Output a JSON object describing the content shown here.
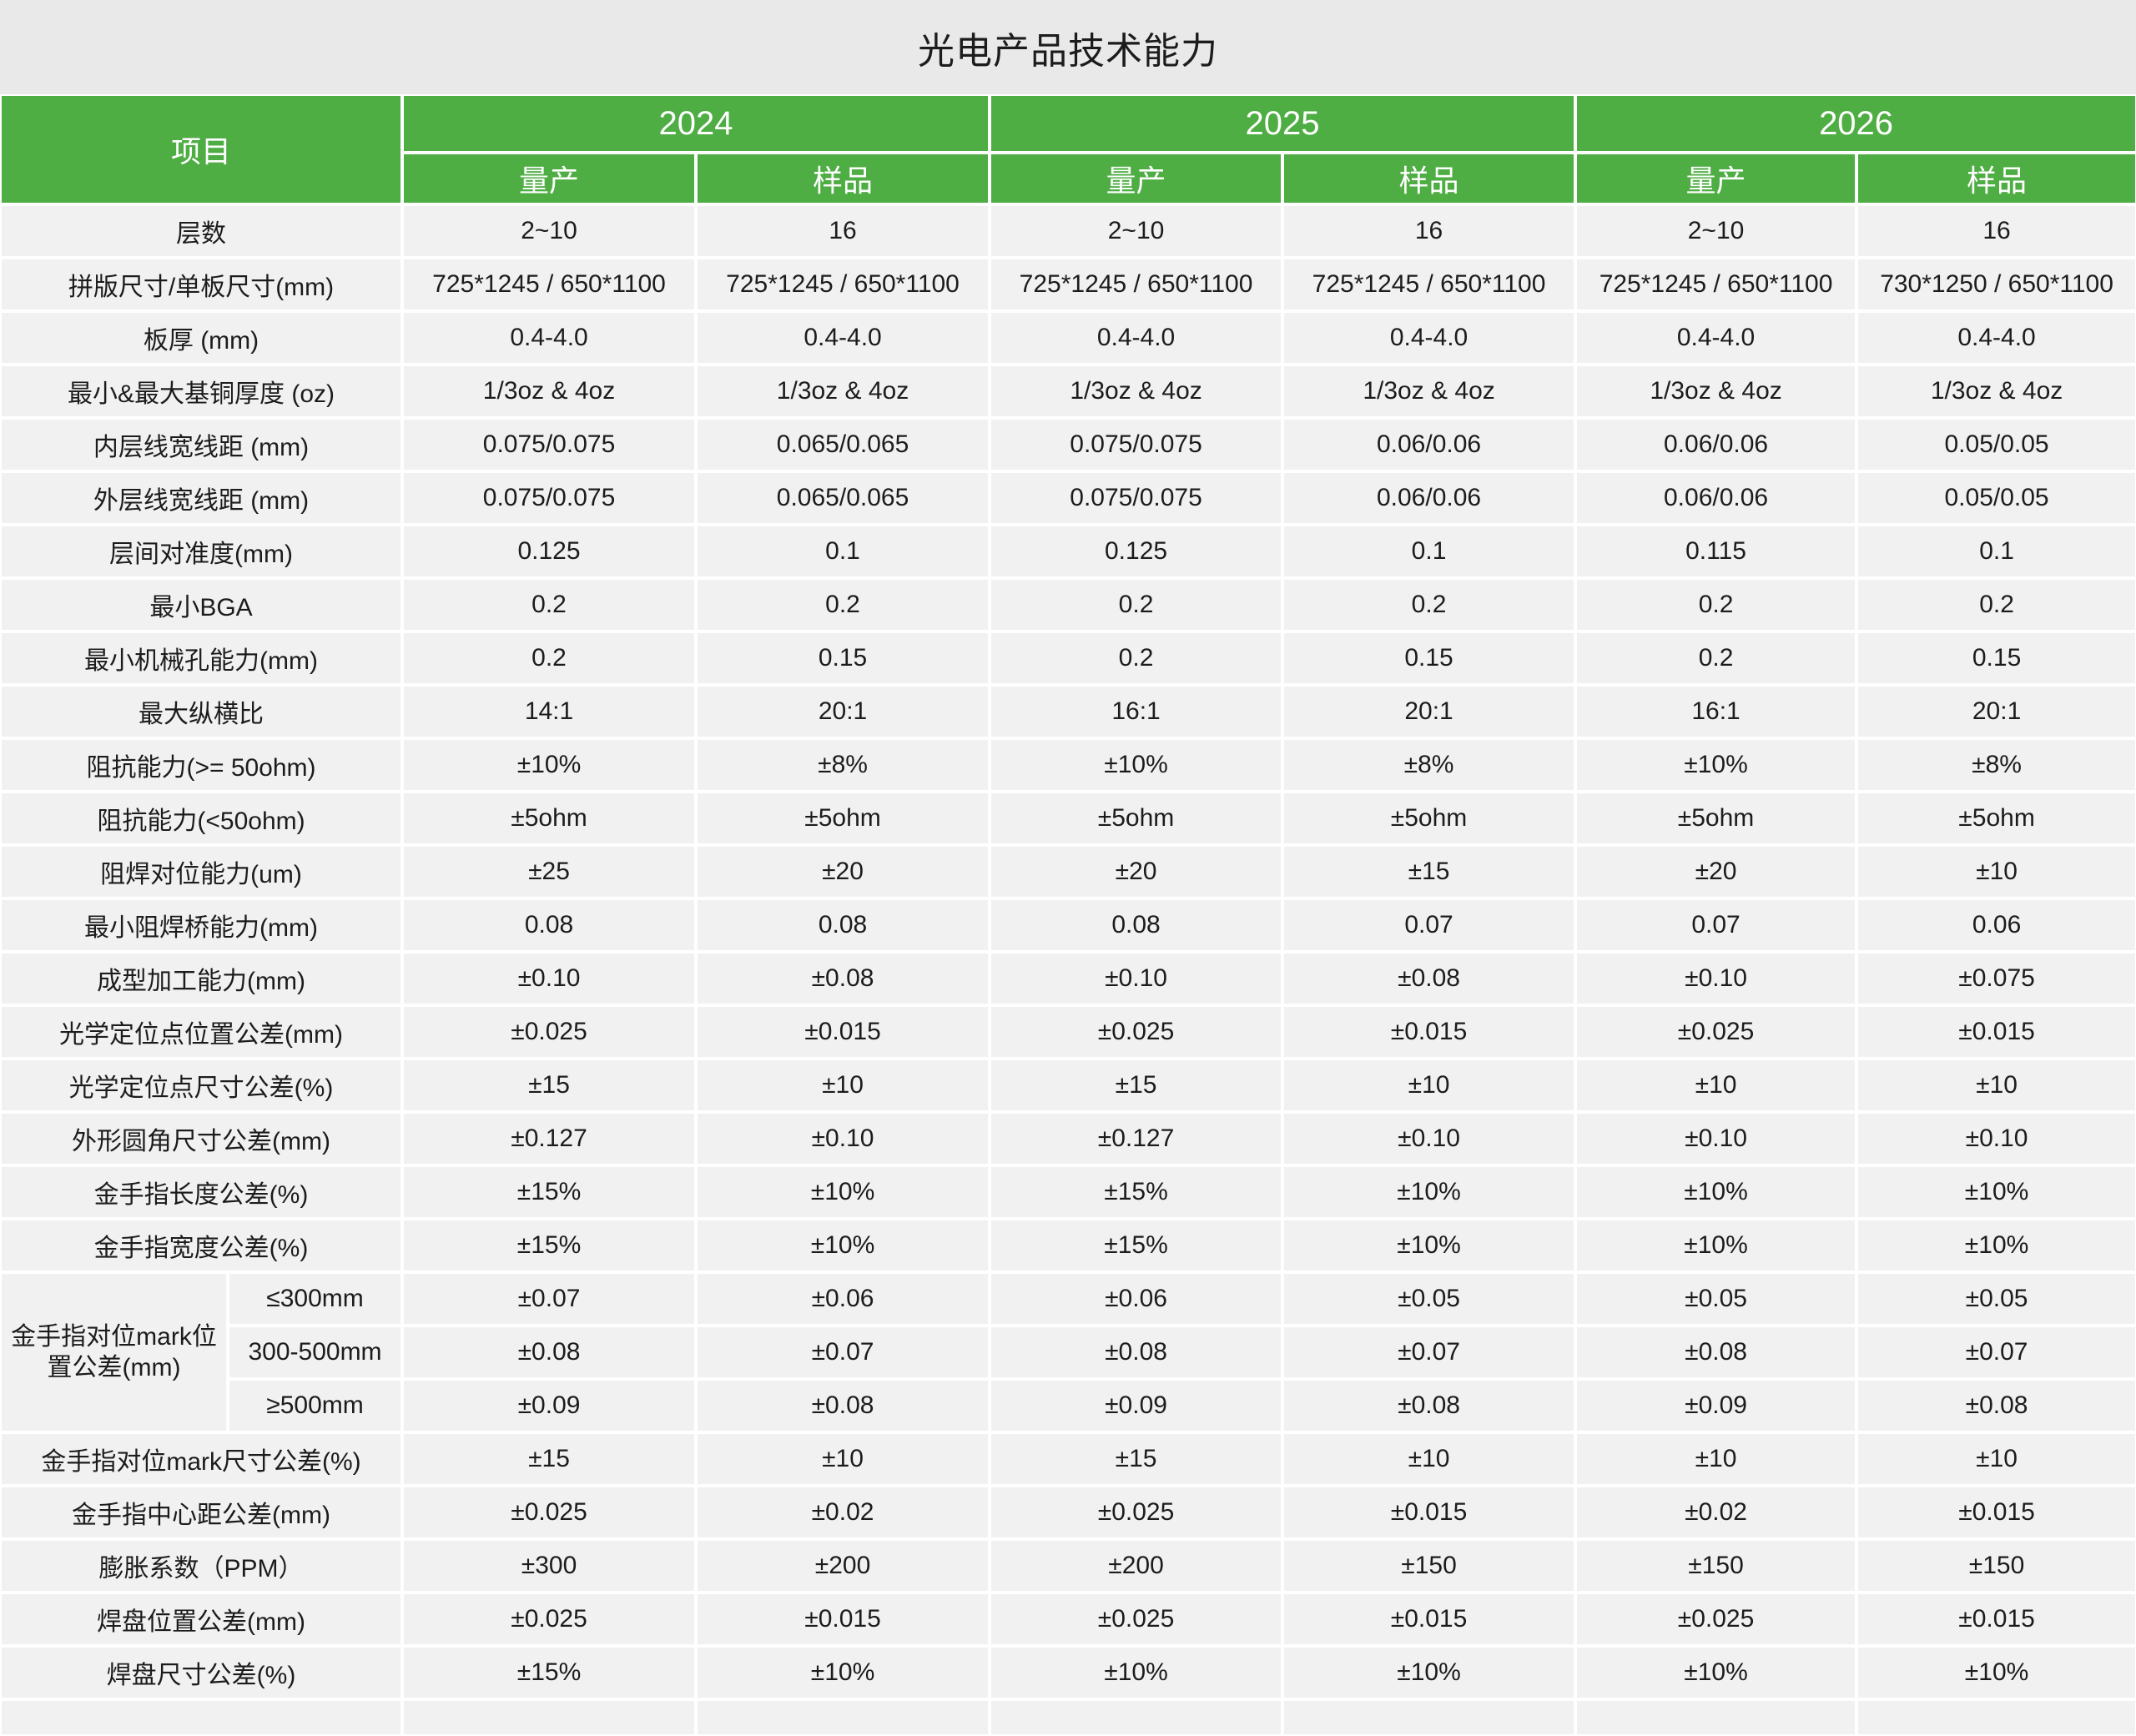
{
  "title": "光电产品技术能力",
  "colors": {
    "header_green": "#4EAD43",
    "page_background": "#E9E9E9",
    "cell_background": "#F1F1F1",
    "grid_line": "#FFFFFF",
    "header_text": "#FFFFFF",
    "body_text": "#1C1C1C"
  },
  "header": {
    "item_label": "项目",
    "years": [
      "2024",
      "2025",
      "2026"
    ],
    "sub_columns": [
      "量产",
      "样品"
    ]
  },
  "rows": [
    {
      "label": "层数",
      "values": [
        "2~10",
        "16",
        "2~10",
        "16",
        "2~10",
        "16"
      ]
    },
    {
      "label": "拼版尺寸/单板尺寸(mm)",
      "values": [
        "725*1245 / 650*1100",
        "725*1245 / 650*1100",
        "725*1245 / 650*1100",
        "725*1245 / 650*1100",
        "725*1245 / 650*1100",
        "730*1250 / 650*1100"
      ]
    },
    {
      "label": "板厚 (mm)",
      "values": [
        "0.4-4.0",
        "0.4-4.0",
        "0.4-4.0",
        "0.4-4.0",
        "0.4-4.0",
        "0.4-4.0"
      ]
    },
    {
      "label": "最小&最大基铜厚度 (oz)",
      "values": [
        "1/3oz & 4oz",
        "1/3oz & 4oz",
        "1/3oz & 4oz",
        "1/3oz & 4oz",
        "1/3oz & 4oz",
        "1/3oz & 4oz"
      ]
    },
    {
      "label": "内层线宽线距 (mm)",
      "values": [
        "0.075/0.075",
        "0.065/0.065",
        "0.075/0.075",
        "0.06/0.06",
        "0.06/0.06",
        "0.05/0.05"
      ]
    },
    {
      "label": "外层线宽线距 (mm)",
      "values": [
        "0.075/0.075",
        "0.065/0.065",
        "0.075/0.075",
        "0.06/0.06",
        "0.06/0.06",
        "0.05/0.05"
      ]
    },
    {
      "label": "层间对准度(mm)",
      "values": [
        "0.125",
        "0.1",
        "0.125",
        "0.1",
        "0.115",
        "0.1"
      ]
    },
    {
      "label": "最小BGA",
      "values": [
        "0.2",
        "0.2",
        "0.2",
        "0.2",
        "0.2",
        "0.2"
      ]
    },
    {
      "label": "最小机械孔能力(mm)",
      "values": [
        "0.2",
        "0.15",
        "0.2",
        "0.15",
        "0.2",
        "0.15"
      ]
    },
    {
      "label": "最大纵横比",
      "values": [
        "14:1",
        "20:1",
        "16:1",
        "20:1",
        "16:1",
        "20:1"
      ]
    },
    {
      "label": "阻抗能力(>= 50ohm)",
      "values": [
        "±10%",
        "±8%",
        "±10%",
        "±8%",
        "±10%",
        "±8%"
      ]
    },
    {
      "label": "阻抗能力(<50ohm)",
      "values": [
        "±5ohm",
        "±5ohm",
        "±5ohm",
        "±5ohm",
        "±5ohm",
        "±5ohm"
      ]
    },
    {
      "label": "阻焊对位能力(um)",
      "values": [
        "±25",
        "±20",
        "±20",
        "±15",
        "±20",
        "±10"
      ]
    },
    {
      "label": "最小阻焊桥能力(mm)",
      "values": [
        "0.08",
        "0.08",
        "0.08",
        "0.07",
        "0.07",
        "0.06"
      ]
    },
    {
      "label": "成型加工能力(mm)",
      "values": [
        "±0.10",
        "±0.08",
        "±0.10",
        "±0.08",
        "±0.10",
        "±0.075"
      ]
    },
    {
      "label": "光学定位点位置公差(mm)",
      "values": [
        "±0.025",
        "±0.015",
        "±0.025",
        "±0.015",
        "±0.025",
        "±0.015"
      ]
    },
    {
      "label": "光学定位点尺寸公差(%)",
      "values": [
        "±15",
        "±10",
        "±15",
        "±10",
        "±10",
        "±10"
      ]
    },
    {
      "label": "外形圆角尺寸公差(mm)",
      "values": [
        "±0.127",
        "±0.10",
        "±0.127",
        "±0.10",
        "±0.10",
        "±0.10"
      ]
    },
    {
      "label": "金手指长度公差(%)",
      "values": [
        "±15%",
        "±10%",
        "±15%",
        "±10%",
        "±10%",
        "±10%"
      ]
    },
    {
      "label": "金手指宽度公差(%)",
      "values": [
        "±15%",
        "±10%",
        "±15%",
        "±10%",
        "±10%",
        "±10%"
      ]
    },
    {
      "label": "金手指对位mark位置公差(mm)",
      "sub_rows": [
        {
          "label": "≤300mm",
          "values": [
            "±0.07",
            "±0.06",
            "±0.06",
            "±0.05",
            "±0.05",
            "±0.05"
          ]
        },
        {
          "label": "300-500mm",
          "values": [
            "±0.08",
            "±0.07",
            "±0.08",
            "±0.07",
            "±0.08",
            "±0.07"
          ]
        },
        {
          "label": "≥500mm",
          "values": [
            "±0.09",
            "±0.08",
            "±0.09",
            "±0.08",
            "±0.09",
            "±0.08"
          ]
        }
      ]
    },
    {
      "label": "金手指对位mark尺寸公差(%)",
      "values": [
        "±15",
        "±10",
        "±15",
        "±10",
        "±10",
        "±10"
      ]
    },
    {
      "label": "金手指中心距公差(mm)",
      "values": [
        "±0.025",
        "±0.02",
        "±0.025",
        "±0.015",
        "±0.02",
        "±0.015"
      ]
    },
    {
      "label": "膨胀系数（PPM）",
      "values": [
        "±300",
        "±200",
        "±200",
        "±150",
        "±150",
        "±150"
      ]
    },
    {
      "label": "焊盘位置公差(mm)",
      "values": [
        "±0.025",
        "±0.015",
        "±0.025",
        "±0.015",
        "±0.025",
        "±0.015"
      ]
    },
    {
      "label": "焊盘尺寸公差(%)",
      "values": [
        "±15%",
        "±10%",
        "±10%",
        "±10%",
        "±10%",
        "±10%"
      ]
    }
  ]
}
